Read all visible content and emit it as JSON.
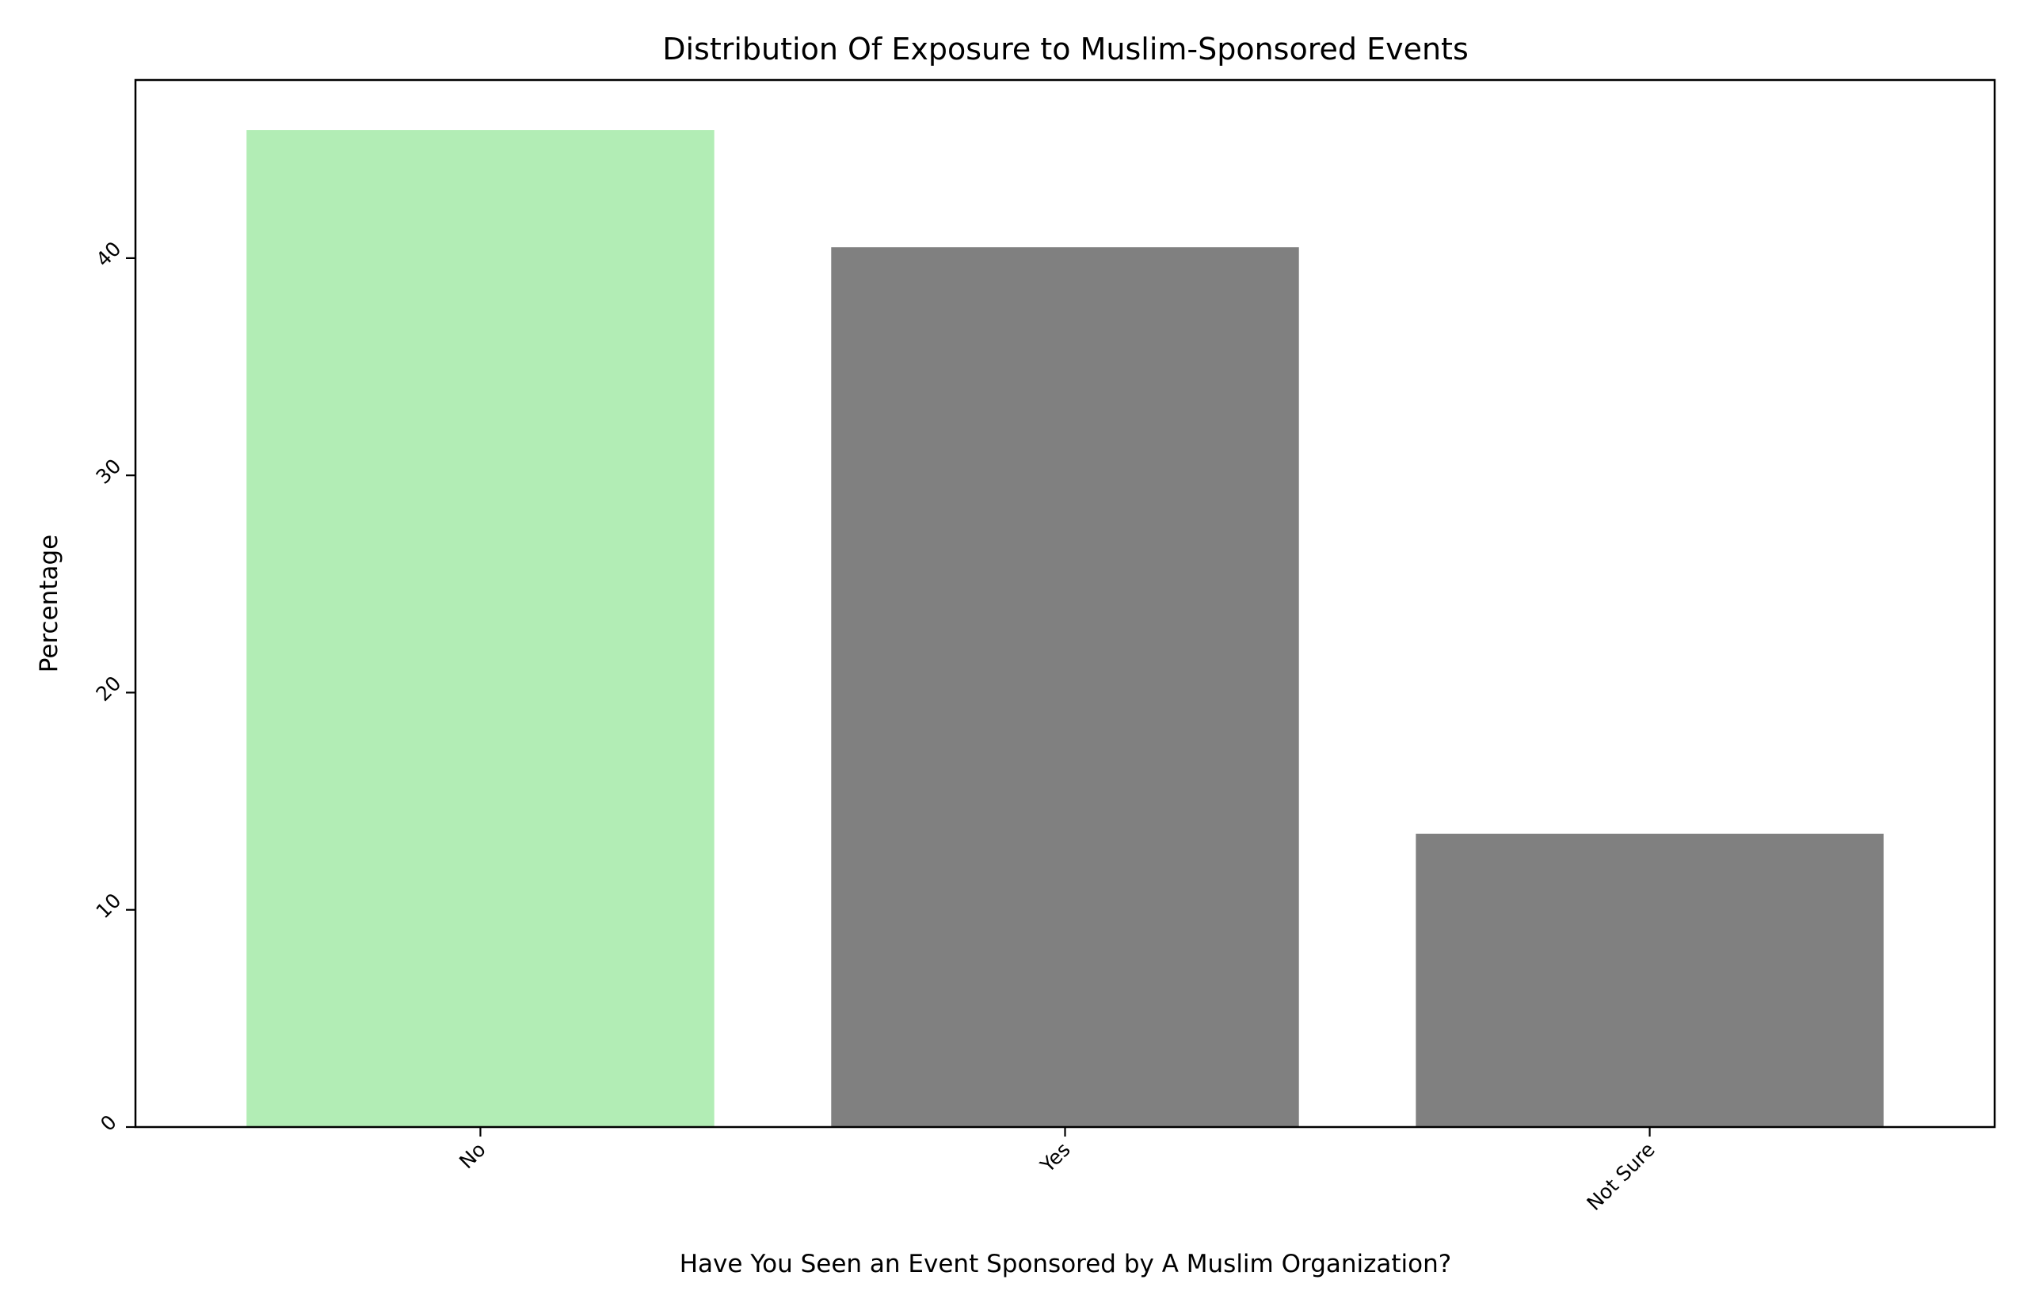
{
  "chart_data": {
    "type": "bar",
    "title": "Distribution Of Exposure to Muslim-Sponsored Events",
    "xlabel": "Have You Seen an Event Sponsored by A Muslim Organization?",
    "ylabel": "Percentage",
    "categories": [
      "No",
      "Yes",
      "Not Sure"
    ],
    "values": [
      45.9,
      40.5,
      13.5
    ],
    "bar_colors": [
      "#b2edb5",
      "#808080",
      "#808080"
    ],
    "ylim": [
      0,
      48.2
    ],
    "yticks": [
      0,
      10,
      20,
      30,
      40
    ],
    "ytick_labels": [
      "0",
      "10",
      "20",
      "30",
      "40"
    ],
    "grid": false,
    "legend": "none"
  }
}
